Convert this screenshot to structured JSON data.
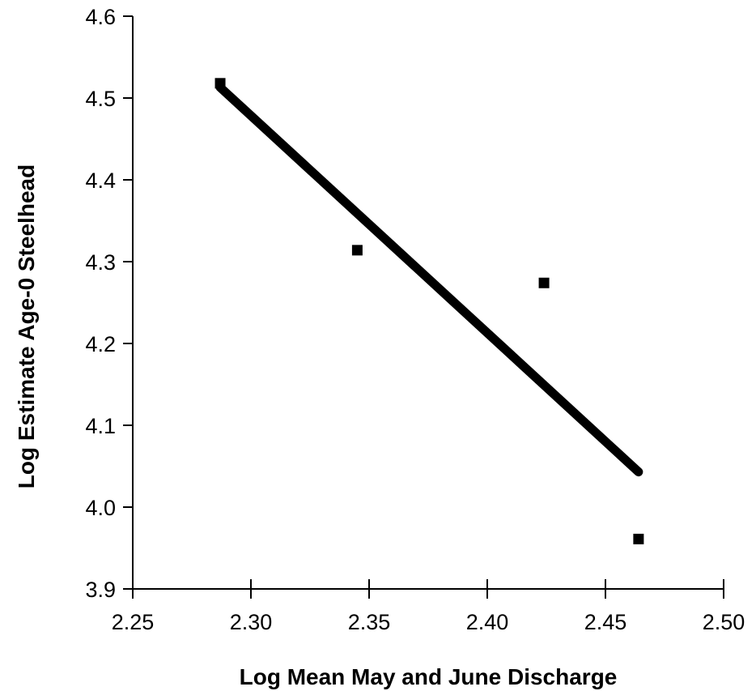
{
  "chart_data": {
    "type": "scatter",
    "title": "",
    "xlabel": "Log Mean May and June Discharge",
    "ylabel": "Log Estimate Age-0 Steelhead",
    "xlim": [
      2.25,
      2.5
    ],
    "ylim": [
      3.9,
      4.6
    ],
    "x_ticks": [
      "2.25",
      "2.30",
      "2.35",
      "2.40",
      "2.45",
      "2.50"
    ],
    "y_ticks": [
      "3.9",
      "4.0",
      "4.1",
      "4.2",
      "4.3",
      "4.4",
      "4.5",
      "4.6"
    ],
    "grid": false,
    "legend": "none",
    "series": [
      {
        "points": [
          {
            "x": 2.287,
            "y": 4.518
          },
          {
            "x": 2.345,
            "y": 4.314
          },
          {
            "x": 2.424,
            "y": 4.274
          },
          {
            "x": 2.464,
            "y": 3.961
          }
        ]
      }
    ],
    "trendline": {
      "type": "linear",
      "from": {
        "x": 2.287,
        "y": 4.513
      },
      "to": {
        "x": 2.464,
        "y": 4.043
      }
    }
  }
}
